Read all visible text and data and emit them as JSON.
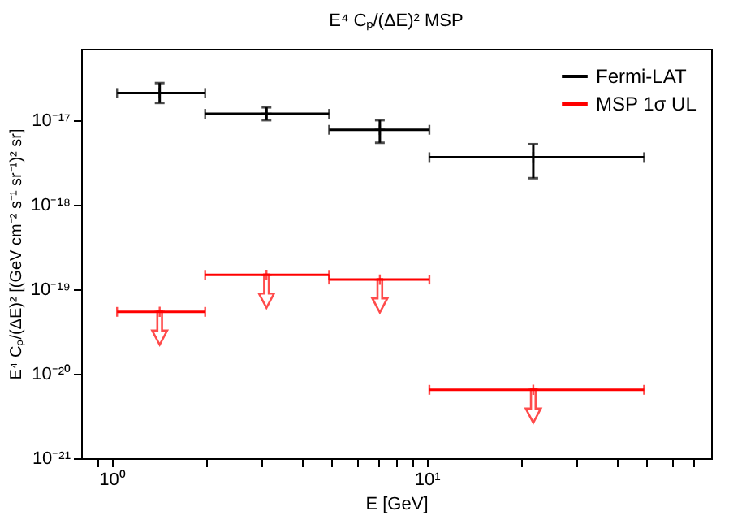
{
  "chart_data": {
    "type": "scatter",
    "title": "E⁴ Cₚ/(ΔE)² MSP",
    "xlabel": "E [GeV]",
    "ylabel": "E⁴ Cₚ/(ΔE)² [(GeV cm⁻² s⁻¹ sr⁻¹)² sr]",
    "log": "xy",
    "grid": false,
    "legend": "top right",
    "marker": "cross",
    "xlim": [
      0.8,
      80
    ],
    "ylim": [
      1e-21,
      7e-17
    ],
    "xticks": [
      {
        "value": 0.9,
        "label": null
      },
      {
        "value": 1,
        "label": "10⁰"
      },
      {
        "value": 2,
        "label": null
      },
      {
        "value": 3,
        "label": null
      },
      {
        "value": 4,
        "label": null
      },
      {
        "value": 5,
        "label": null
      },
      {
        "value": 6,
        "label": null
      },
      {
        "value": 7,
        "label": null
      },
      {
        "value": 8,
        "label": null
      },
      {
        "value": 9,
        "label": null
      },
      {
        "value": 10,
        "label": "10¹"
      },
      {
        "value": 20,
        "label": null
      },
      {
        "value": 30,
        "label": null
      },
      {
        "value": 40,
        "label": null
      },
      {
        "value": 50,
        "label": null
      },
      {
        "value": 60,
        "label": null
      },
      {
        "value": 70,
        "label": null
      }
    ],
    "yticks": [
      {
        "value": 1e-21,
        "label": "10⁻²¹"
      },
      {
        "value": 1e-20,
        "label": "10⁻²⁰"
      },
      {
        "value": 1e-19,
        "label": "10⁻¹⁹"
      },
      {
        "value": 1e-18,
        "label": "10⁻¹⁸"
      },
      {
        "value": 1e-17,
        "label": "10⁻¹⁷"
      }
    ],
    "series": [
      {
        "name": "Fermi-LAT",
        "color": "#000000",
        "x": [
          1.42,
          3.1,
          7.1,
          21.8
        ],
        "values": [
          2.1e-17,
          1.19e-17,
          7.7e-18,
          3.65e-18
        ],
        "errors": [
          [
            1.6e-17,
            2.75e-17
          ],
          [
            1e-17,
            1.42e-17
          ],
          [
            5.4e-18,
            1e-17
          ],
          [
            2.06e-18,
            5.2e-18
          ]
        ],
        "xerrors": [
          [
            1.04,
            1.98
          ],
          [
            1.98,
            4.9
          ],
          [
            4.9,
            10.2
          ],
          [
            10.2,
            49
          ]
        ]
      },
      {
        "name": "MSP 1σ UL",
        "color": "#ff0000",
        "x": [
          1.42,
          3.1,
          7.1,
          21.8
        ],
        "values": [
          5.4e-20,
          1.48e-19,
          1.3e-19,
          6.45e-21
        ],
        "xerrors": [
          [
            1.04,
            1.98
          ],
          [
            1.98,
            4.9
          ],
          [
            4.9,
            10.2
          ],
          [
            10.2,
            49
          ]
        ]
      }
    ]
  }
}
